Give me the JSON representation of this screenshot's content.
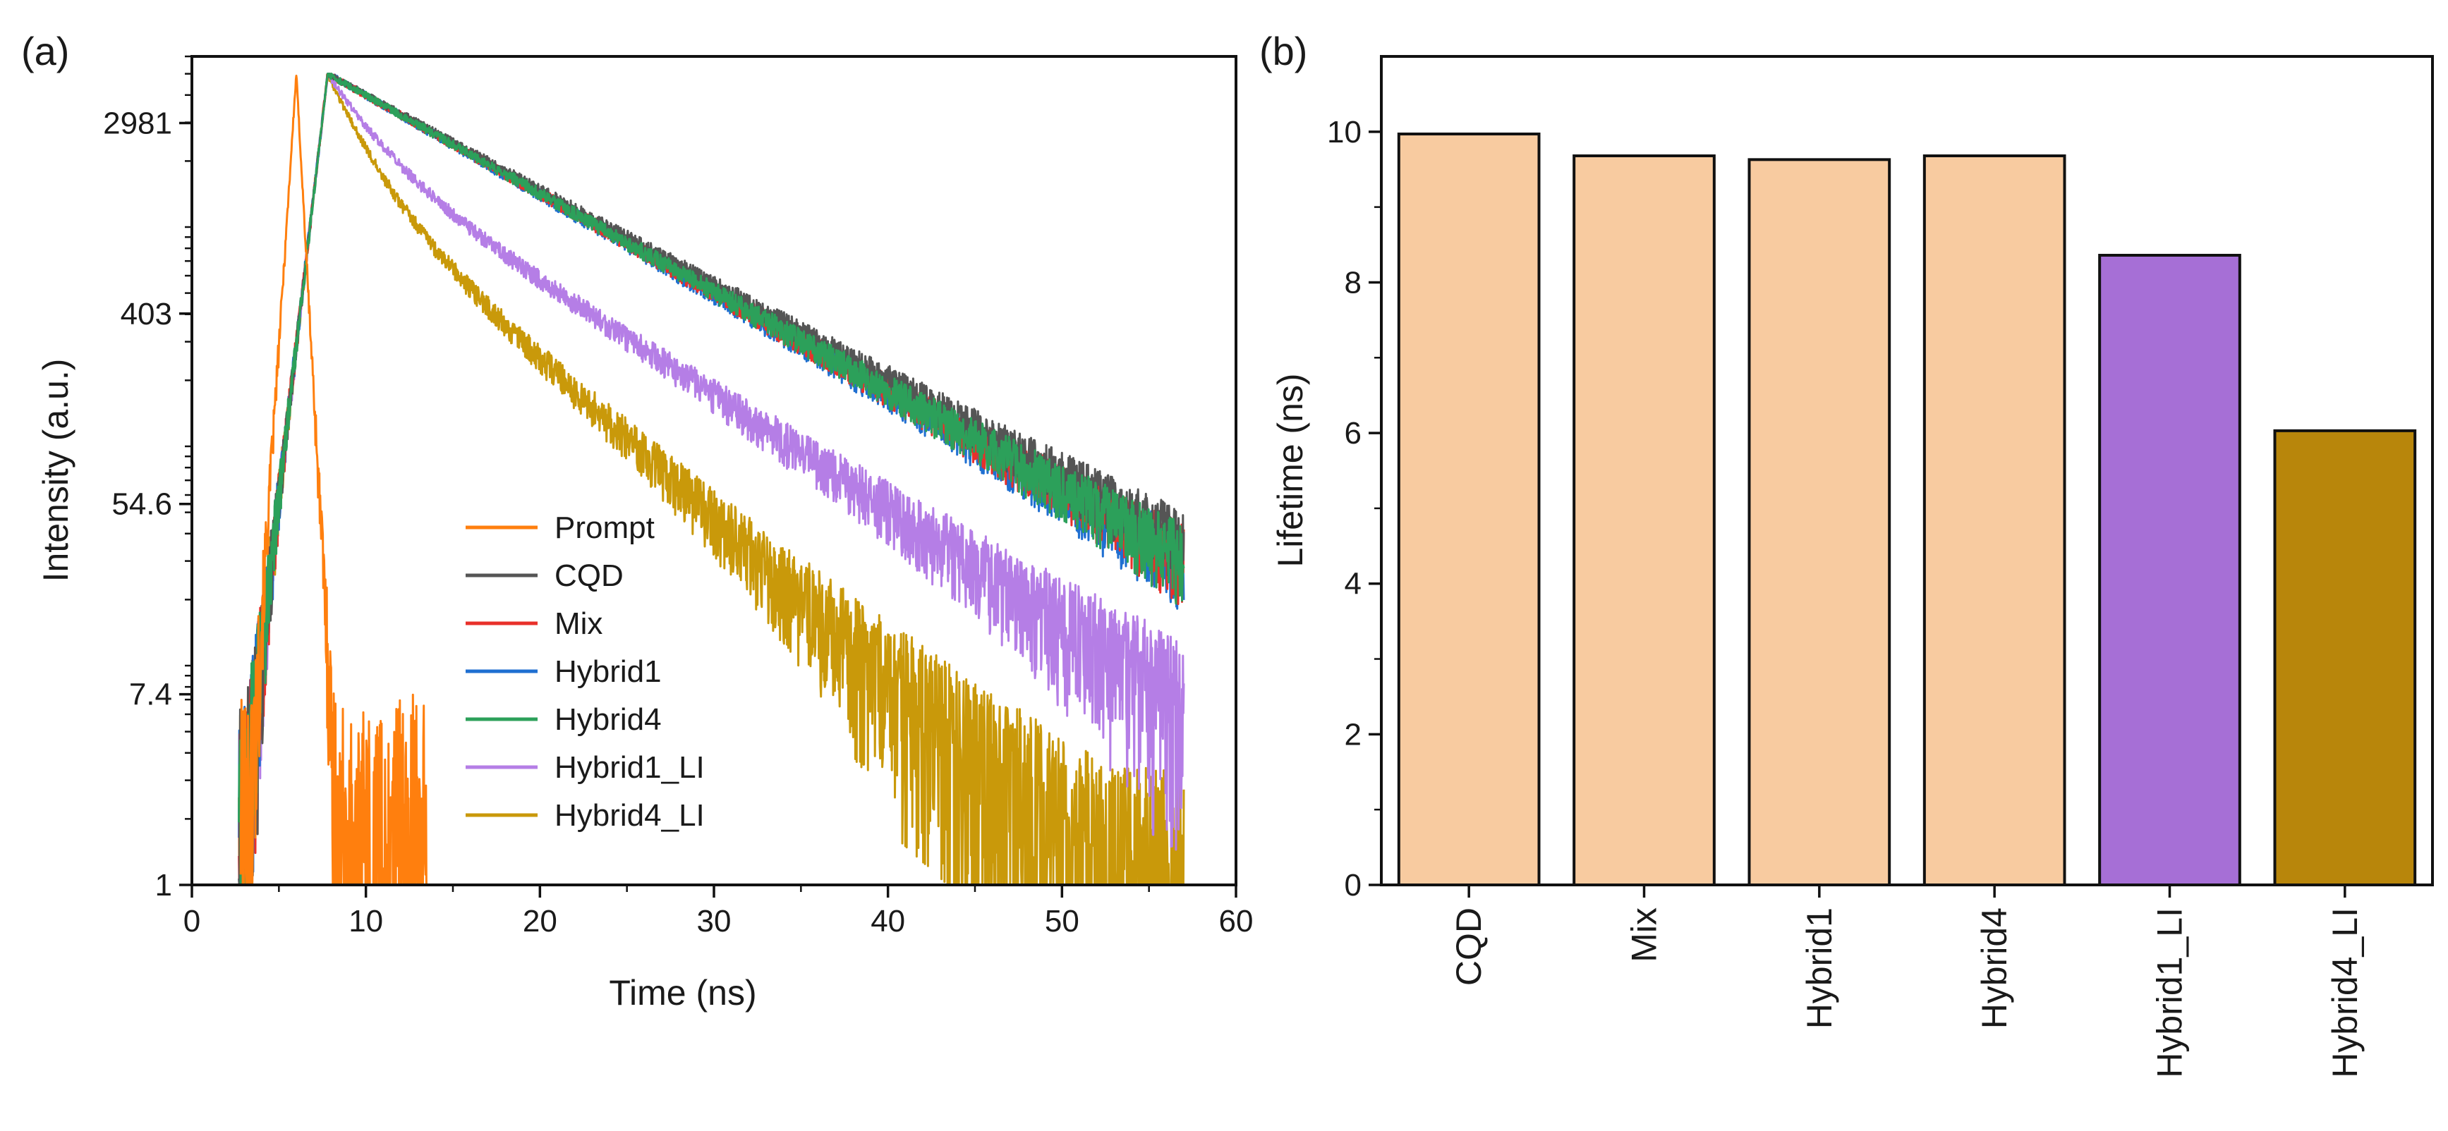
{
  "chart_data": [
    {
      "panel_label": "(a)",
      "type": "line",
      "title": "",
      "xlabel": "Time (ns)",
      "ylabel": "Intensity (a.u.)",
      "xlim": [
        0,
        60
      ],
      "ylim": [
        1,
        6000
      ],
      "yscale": "log",
      "x_ticks": [
        0,
        10,
        20,
        30,
        40,
        50,
        60
      ],
      "y_ticks": [
        {
          "value": 1,
          "label": "1"
        },
        {
          "value": 7.4,
          "label": "7.4"
        },
        {
          "value": 54.6,
          "label": "54.6"
        },
        {
          "value": 403,
          "label": "403"
        },
        {
          "value": 2981,
          "label": "2981"
        }
      ],
      "legend_position": "center",
      "series": [
        {
          "name": "Prompt",
          "color": "#ff7f0e",
          "decay": "instrument",
          "peak_time": 6.0,
          "end_time": 13.5
        },
        {
          "name": "CQD",
          "color": "#555555",
          "decay": "mono",
          "peak_time": 7.8,
          "tau": 10.0,
          "end_time": 57
        },
        {
          "name": "Mix",
          "color": "#e8302a",
          "decay": "mono",
          "peak_time": 7.8,
          "tau": 9.7,
          "end_time": 57
        },
        {
          "name": "Hybrid1",
          "color": "#1f6fd1",
          "decay": "mono",
          "peak_time": 7.8,
          "tau": 9.6,
          "end_time": 57
        },
        {
          "name": "Hybrid4",
          "color": "#2ca05a",
          "decay": "mono",
          "peak_time": 7.8,
          "tau": 9.7,
          "end_time": 57
        },
        {
          "name": "Hybrid1_LI",
          "color": "#b57ee6",
          "decay": "bi",
          "peak_time": 7.8,
          "tau": 8.4,
          "end_time": 57
        },
        {
          "name": "Hybrid4_LI",
          "color": "#c9990a",
          "decay": "bi",
          "peak_time": 7.8,
          "tau": 6.0,
          "end_time": 57
        }
      ]
    },
    {
      "panel_label": "(b)",
      "type": "bar",
      "title": "",
      "xlabel": "",
      "ylabel": "Lifetime (ns)",
      "ylim": [
        0,
        11
      ],
      "y_ticks": [
        0,
        2,
        4,
        6,
        8,
        10
      ],
      "categories": [
        "CQD",
        "Mix",
        "Hybrid1",
        "Hybrid4",
        "Hybrid1_LI",
        "Hybrid4_LI"
      ],
      "values": [
        9.97,
        9.68,
        9.63,
        9.68,
        8.36,
        6.03
      ],
      "colors": [
        "#f8cba0",
        "#f8cba0",
        "#f8cba0",
        "#f8cba0",
        "#a66fd6",
        "#b8860b"
      ]
    }
  ]
}
